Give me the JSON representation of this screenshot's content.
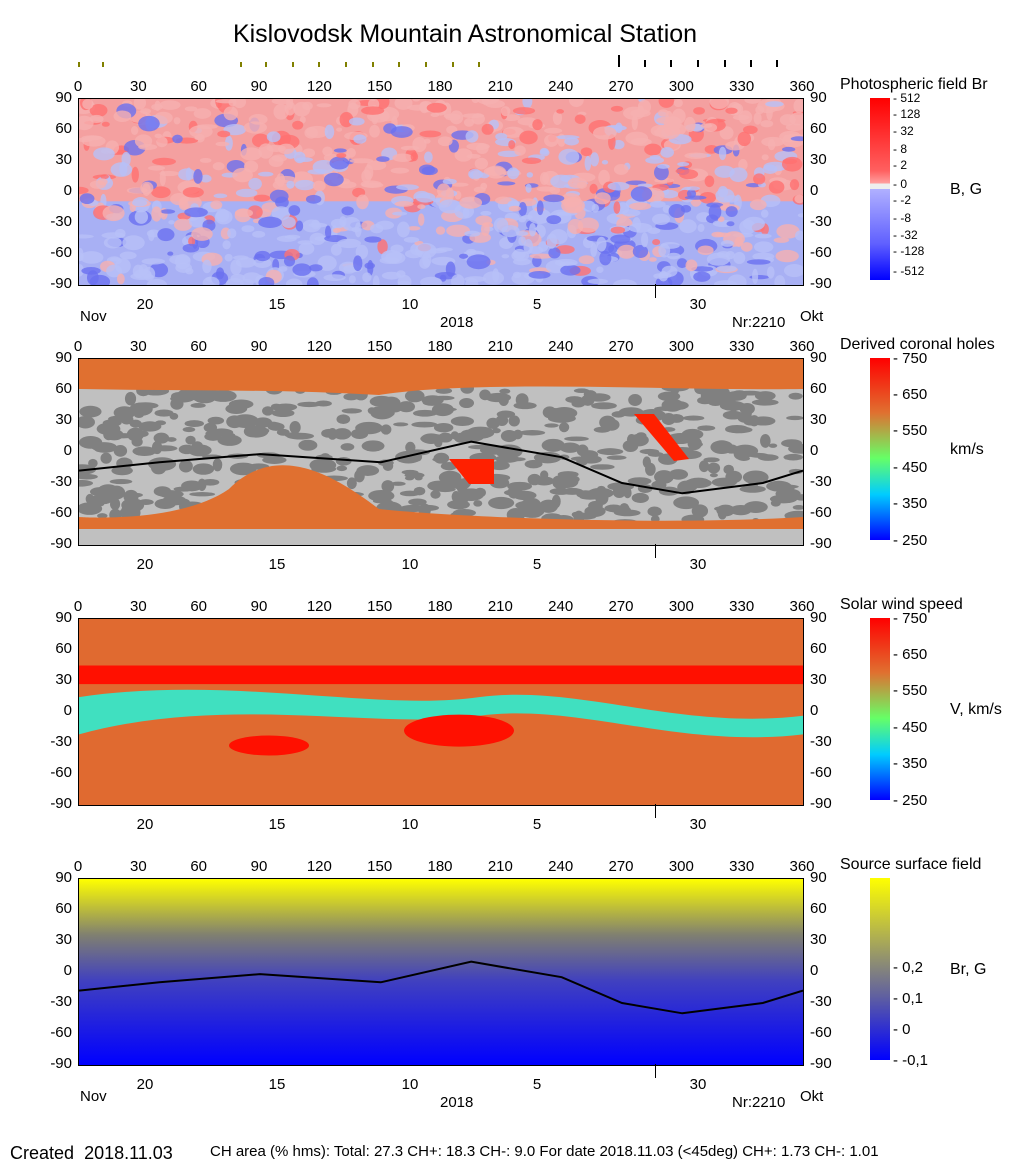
{
  "title": "Kislovodsk Mountain Astronomical Station",
  "chart_data": [
    {
      "type": "heatmap",
      "title": "Photospheric field Br",
      "unit": "B, G",
      "colorbar_ticks": [
        "512",
        "128",
        "32",
        "8",
        "2",
        "0",
        "-2",
        "-8",
        "-32",
        "-128",
        "-512"
      ],
      "colormap": [
        "#ff0000",
        "#f0f0f0",
        "#0000ff"
      ]
    },
    {
      "type": "heatmap",
      "title": "Derived coronal holes",
      "unit": "km/s",
      "colorbar_ticks": [
        "750",
        "650",
        "550",
        "450",
        "350",
        "250"
      ],
      "colormap": [
        "#0000ff",
        "#00ffff",
        "#66ff66",
        "#e07030",
        "#ff0000"
      ],
      "neutral_line": [
        [
          0,
          -18
        ],
        [
          40,
          -10
        ],
        [
          90,
          -2
        ],
        [
          150,
          -10
        ],
        [
          195,
          10
        ],
        [
          240,
          -5
        ],
        [
          270,
          -30
        ],
        [
          300,
          -40
        ],
        [
          340,
          -30
        ],
        [
          360,
          -18
        ]
      ]
    },
    {
      "type": "heatmap",
      "title": "Solar wind speed",
      "unit": "V, km/s",
      "colorbar_ticks": [
        "750",
        "650",
        "550",
        "450",
        "350",
        "250"
      ],
      "colormap": [
        "#0000ff",
        "#00ffff",
        "#66ff66",
        "#e07030",
        "#ff0000"
      ]
    },
    {
      "type": "heatmap",
      "title": "Source surface field",
      "unit": "Br, G",
      "colorbar_ticks": [
        "0,2",
        "0,1",
        "0",
        "-0,1"
      ],
      "colormap": [
        "#0000ff",
        "#808080",
        "#ffff00"
      ],
      "neutral_line": [
        [
          0,
          -18
        ],
        [
          40,
          -10
        ],
        [
          90,
          -2
        ],
        [
          150,
          -10
        ],
        [
          195,
          10
        ],
        [
          240,
          -5
        ],
        [
          270,
          -30
        ],
        [
          300,
          -40
        ],
        [
          340,
          -30
        ],
        [
          360,
          -18
        ]
      ]
    }
  ],
  "axes": {
    "lon_ticks": [
      "0",
      "30",
      "60",
      "90",
      "120",
      "150",
      "180",
      "210",
      "240",
      "270",
      "300",
      "330",
      "360"
    ],
    "lat_ticks": [
      "90",
      "60",
      "30",
      "0",
      "-30",
      "-60",
      "-90"
    ],
    "date_ticks": [
      "20",
      "15",
      "10",
      "5",
      "30"
    ],
    "month_left": "Nov",
    "month_right": "Okt",
    "year": "2018",
    "rotation": "Nr:2210"
  },
  "footer": {
    "created_label": "Created",
    "created_date": "2018.11.03",
    "stats": "CH area (% hms): Total: 27.3 CH+: 18.3   CH-: 9.0    For date 2018.11.03 (<45deg) CH+: 1.73    CH-: 1.01"
  }
}
